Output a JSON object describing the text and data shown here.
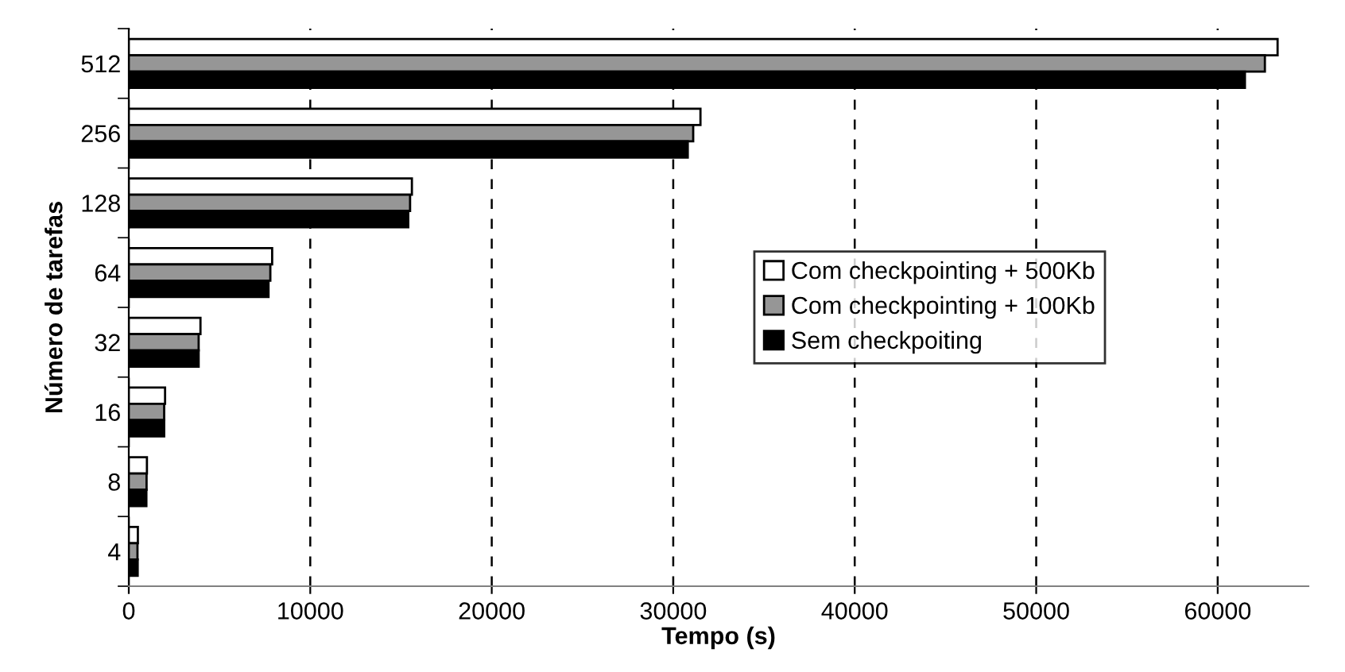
{
  "chart_data": {
    "type": "bar",
    "orientation": "horizontal",
    "xlabel": "Tempo (s)",
    "ylabel": "Número de tarefas",
    "categories": [
      "512",
      "256",
      "128",
      "64",
      "32",
      "16",
      "8",
      "4"
    ],
    "series": [
      {
        "name": "Com checkpointing + 500Kb",
        "color": "#ffffff",
        "values": [
          63300,
          31500,
          15600,
          7900,
          3950,
          2000,
          1000,
          500
        ]
      },
      {
        "name": "Com checkpointing + 100Kb",
        "color": "#969696",
        "values": [
          62600,
          31100,
          15500,
          7800,
          3850,
          1950,
          980,
          480
        ]
      },
      {
        "name": "Sem checkpoiting",
        "color": "#000000",
        "values": [
          61500,
          30800,
          15400,
          7700,
          3850,
          1950,
          970,
          490
        ]
      }
    ],
    "xlim": [
      0,
      65000
    ],
    "xticks": [
      0,
      10000,
      20000,
      30000,
      40000,
      50000,
      60000
    ],
    "grid": "x",
    "legend": "right"
  }
}
